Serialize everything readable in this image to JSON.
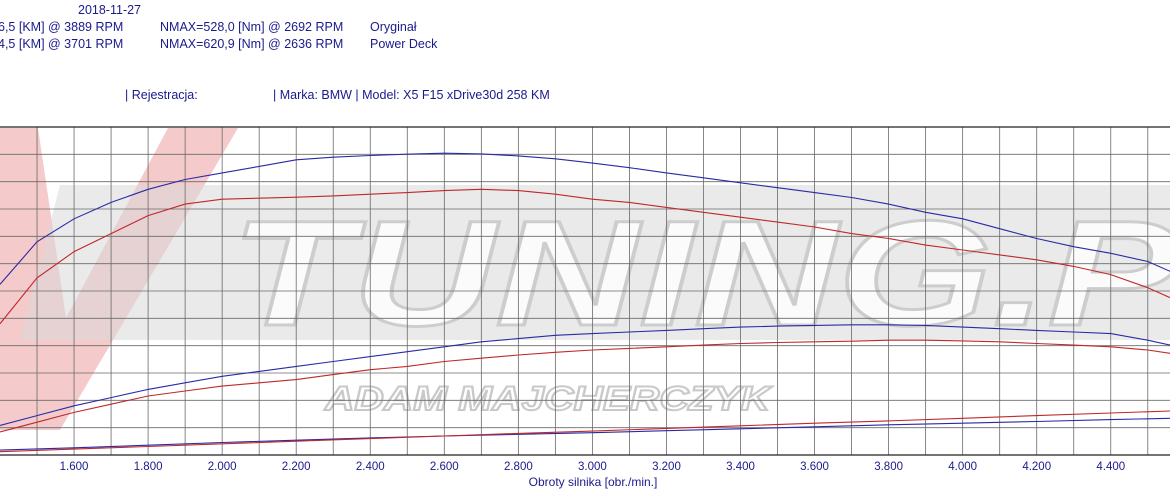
{
  "header": {
    "date": "2018-11-27",
    "line1_power": "6,5 [KM] @ 3889 RPM",
    "line1_torque": "NMAX=528,0 [Nm] @ 2692 RPM",
    "line1_name": "Oryginał",
    "line2_power": "4,5 [KM] @ 3701 RPM",
    "line2_torque": "NMAX=620,9 [Nm] @ 2636 RPM",
    "line2_name": "Power Deck",
    "registration": "| Rejestracja:",
    "vehicle": "| Marka: BMW | Model: X5 F15 xDrive30d 258 KM"
  },
  "watermark": {
    "brand": "TUNING.P",
    "author": "ADAM MAJCHERCZYK"
  },
  "colors": {
    "blue": "#2a2aa6",
    "red": "#c0282a",
    "grid": "#6a6a6a",
    "text": "#1a1a8c"
  },
  "chart_data": {
    "type": "line",
    "xlabel": "Obroty silnika [obr./min.]",
    "xlim": [
      1400,
      4560
    ],
    "ylim": [
      0,
      100
    ],
    "x_ticks": [
      1600,
      1800,
      2000,
      2200,
      2400,
      2600,
      2800,
      3000,
      3200,
      3400,
      3600,
      3800,
      4000,
      4200,
      4400
    ],
    "x_tick_labels": [
      "1.600",
      "1.800",
      "2.000",
      "2.200",
      "2.400",
      "2.600",
      "2.800",
      "3.000",
      "3.200",
      "3.400",
      "3.600",
      "3.800",
      "4.000",
      "4.200",
      "4.400"
    ],
    "grid": true,
    "series": [
      {
        "color": "blue",
        "x": [
          1400,
          1500,
          1600,
          1700,
          1800,
          1900,
          2000,
          2100,
          2200,
          2300,
          2400,
          2500,
          2600,
          2700,
          2800,
          2900,
          3000,
          3100,
          3200,
          3300,
          3400,
          3500,
          3600,
          3700,
          3800,
          3900,
          4000,
          4100,
          4200,
          4300,
          4400,
          4500,
          4560
        ],
        "y": [
          52,
          65,
          72,
          77,
          81,
          84,
          86,
          88,
          90,
          90.8,
          91.3,
          91.7,
          92,
          91.8,
          91.2,
          90.3,
          89,
          87.6,
          86,
          84.5,
          83,
          81.5,
          80,
          78.5,
          76.5,
          74,
          72,
          69,
          66,
          63.5,
          61.5,
          59,
          56
        ]
      },
      {
        "color": "red",
        "x": [
          1400,
          1500,
          1600,
          1700,
          1800,
          1900,
          2000,
          2100,
          2200,
          2300,
          2400,
          2500,
          2600,
          2700,
          2800,
          2900,
          3000,
          3100,
          3200,
          3300,
          3400,
          3500,
          3600,
          3700,
          3800,
          3900,
          4000,
          4100,
          4200,
          4300,
          4400,
          4500,
          4560
        ],
        "y": [
          40,
          54,
          62,
          67.5,
          73,
          76.5,
          78,
          78.3,
          78.6,
          79,
          79.5,
          80,
          80.6,
          81,
          80.6,
          79.5,
          78,
          77,
          75.5,
          74,
          72.5,
          71,
          69.5,
          67.5,
          66,
          64,
          62.5,
          61,
          59.5,
          57.5,
          55,
          51,
          48
        ]
      },
      {
        "color": "blue",
        "x": [
          1400,
          1500,
          1600,
          1700,
          1800,
          1900,
          2000,
          2100,
          2200,
          2300,
          2400,
          2500,
          2600,
          2700,
          2800,
          2900,
          3000,
          3100,
          3200,
          3300,
          3400,
          3500,
          3600,
          3700,
          3800,
          3900,
          4000,
          4100,
          4200,
          4300,
          4400,
          4500,
          4560
        ],
        "y": [
          9,
          12,
          15,
          17.5,
          20,
          22,
          24,
          25.5,
          27,
          28.5,
          30,
          31.5,
          33,
          34.5,
          35.5,
          36.5,
          37,
          37.5,
          38,
          38.5,
          39,
          39.3,
          39.5,
          39.7,
          39.7,
          39.5,
          39,
          38.5,
          38,
          37.5,
          37,
          35,
          33.5
        ]
      },
      {
        "color": "red",
        "x": [
          1400,
          1500,
          1600,
          1700,
          1800,
          1900,
          2000,
          2100,
          2200,
          2300,
          2400,
          2500,
          2600,
          2700,
          2800,
          2900,
          3000,
          3100,
          3200,
          3300,
          3400,
          3500,
          3600,
          3700,
          3800,
          3900,
          4000,
          4100,
          4200,
          4300,
          4400,
          4500,
          4560
        ],
        "y": [
          7,
          10,
          13,
          15.5,
          18,
          19.5,
          21,
          22,
          23,
          24.5,
          26,
          27,
          28.5,
          29.5,
          30.5,
          31.3,
          32,
          32.5,
          33,
          33.5,
          34,
          34.3,
          34.5,
          34.7,
          35,
          35,
          34.8,
          34.5,
          34,
          33.5,
          33,
          32,
          31
        ]
      },
      {
        "color": "blue",
        "x": [
          1400,
          1600,
          1800,
          2000,
          2200,
          2400,
          2600,
          2800,
          3000,
          3200,
          3400,
          3600,
          3800,
          4000,
          4200,
          4400,
          4560
        ],
        "y": [
          1.5,
          2.2,
          3,
          3.8,
          4.5,
          5.2,
          5.8,
          6.3,
          6.8,
          7.4,
          8,
          8.6,
          9.2,
          9.7,
          10.2,
          10.8,
          11.2
        ]
      },
      {
        "color": "red",
        "x": [
          1400,
          1600,
          1800,
          2000,
          2200,
          2400,
          2600,
          2800,
          3000,
          3200,
          3400,
          3600,
          3800,
          4000,
          4200,
          4400,
          4560
        ],
        "y": [
          1,
          1.8,
          2.6,
          3.4,
          4.2,
          5,
          5.8,
          6.6,
          7.3,
          8.1,
          8.9,
          9.7,
          10.4,
          11.2,
          12,
          12.8,
          13.4
        ]
      }
    ]
  }
}
